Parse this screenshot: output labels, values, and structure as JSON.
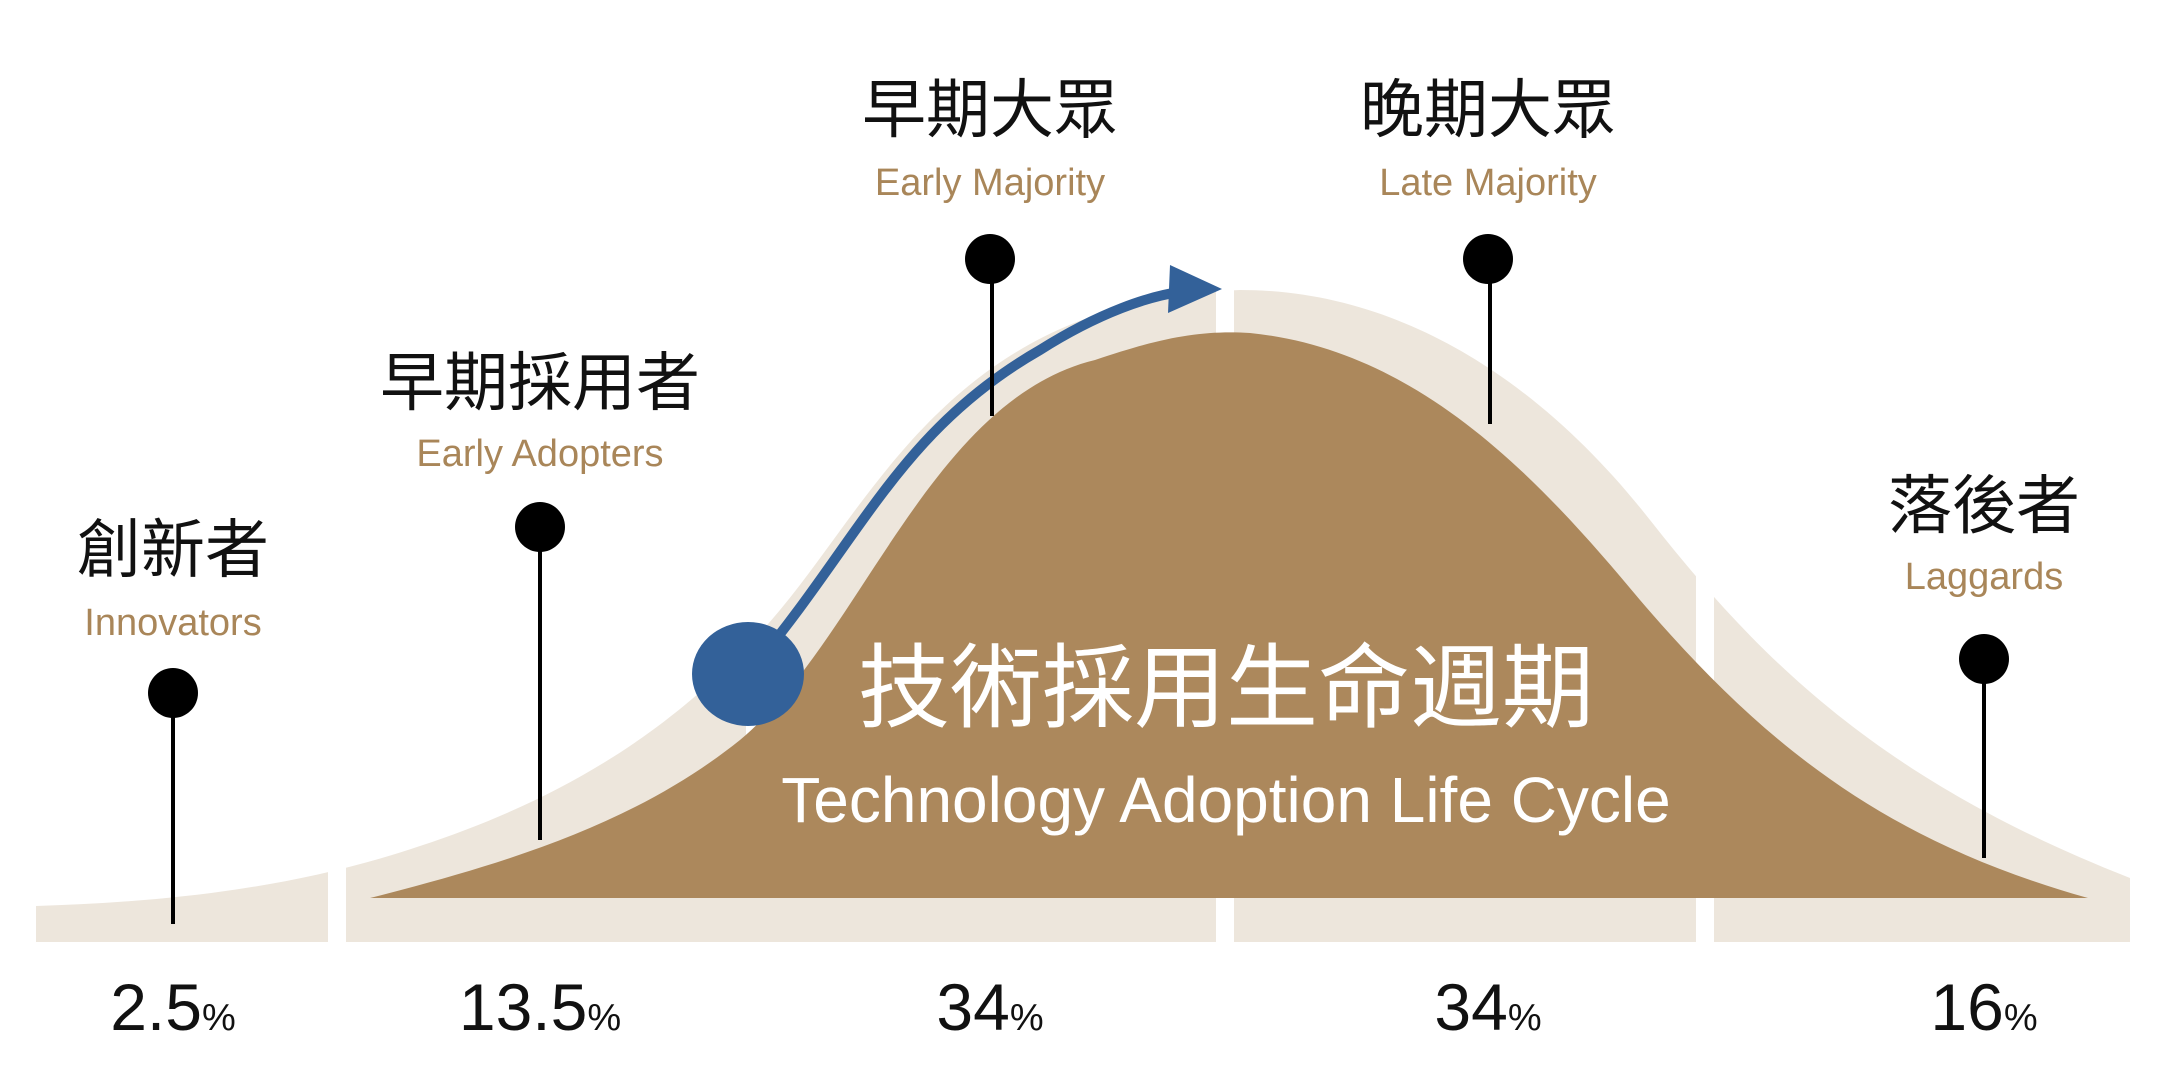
{
  "diagram": {
    "title_zh": "技術採用生命週期",
    "title_en": "Technology Adoption Life Cycle",
    "colors": {
      "bell_fill": "#ac885c",
      "band_fill": "#ede6dc",
      "arrow": "#336199",
      "label_en": "#a98659",
      "pin": "#000000"
    },
    "segments": [
      {
        "label_zh": "創新者",
        "label_en": "Innovators",
        "percent_value": "2.5",
        "percent_unit": "%"
      },
      {
        "label_zh": "早期採用者",
        "label_en": "Early Adopters",
        "percent_value": "13.5",
        "percent_unit": "%"
      },
      {
        "label_zh": "早期大眾",
        "label_en": "Early Majority",
        "percent_value": "34",
        "percent_unit": "%"
      },
      {
        "label_zh": "晚期大眾",
        "label_en": "Late Majority",
        "percent_value": "34",
        "percent_unit": "%"
      },
      {
        "label_zh": "落後者",
        "label_en": "Laggards",
        "percent_value": "16",
        "percent_unit": "%"
      }
    ]
  }
}
